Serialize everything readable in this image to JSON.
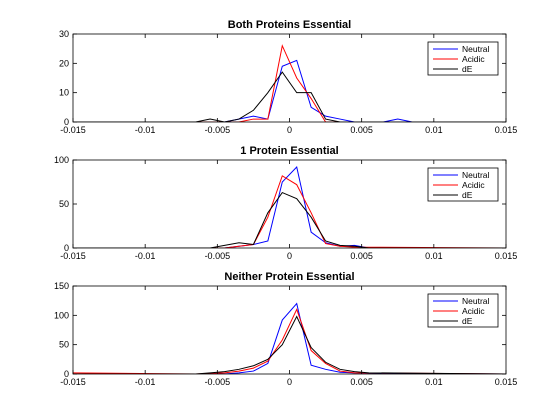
{
  "chart_data": [
    {
      "type": "line",
      "title": "Both Proteins Essential",
      "xlim": [
        -0.015,
        0.015
      ],
      "ylim": [
        0,
        30
      ],
      "xticks": [
        -0.015,
        -0.01,
        -0.005,
        0,
        0.005,
        0.01,
        0.015
      ],
      "xtick_labels": [
        "-0.015",
        "-0.01",
        "-0.005",
        "0",
        "0.005",
        "0.01",
        "0.015"
      ],
      "yticks": [
        0,
        10,
        20,
        30
      ],
      "ytick_labels": [
        "0",
        "10",
        "20",
        "30"
      ],
      "legend_position": "top-right",
      "grid": false,
      "series": [
        {
          "name": "Neutral",
          "color": "#0000ff",
          "x": [
            -0.015,
            -0.0045,
            -0.0025,
            -0.0015,
            -0.0005,
            0.0005,
            0.0015,
            0.0025,
            0.0035,
            0.0045,
            0.0065,
            0.0075,
            0.0085,
            0.0095,
            0.015
          ],
          "y": [
            0,
            0,
            2,
            1,
            19,
            21,
            5,
            2,
            1,
            0,
            0,
            1,
            0,
            0,
            0
          ]
        },
        {
          "name": "Acidic",
          "color": "#ff0000",
          "x": [
            -0.015,
            -0.0035,
            -0.0025,
            -0.0015,
            -0.0005,
            0.0005,
            0.0015,
            0.0025,
            0.0035,
            0.015
          ],
          "y": [
            0,
            0,
            1,
            1,
            26,
            15,
            8,
            0,
            0,
            0
          ]
        },
        {
          "name": "dE",
          "color": "#000000",
          "x": [
            -0.015,
            -0.0065,
            -0.0055,
            -0.0045,
            -0.0035,
            -0.0025,
            -0.0015,
            -0.0005,
            0.0005,
            0.0015,
            0.0025,
            0.0035,
            0.0045,
            0.015
          ],
          "y": [
            0,
            0,
            1,
            0,
            1,
            4,
            10,
            17,
            10,
            10,
            1,
            0,
            0,
            0
          ]
        }
      ]
    },
    {
      "type": "line",
      "title": "1 Protein Essential",
      "xlim": [
        -0.015,
        0.015
      ],
      "ylim": [
        0,
        100
      ],
      "xticks": [
        -0.015,
        -0.01,
        -0.005,
        0,
        0.005,
        0.01,
        0.015
      ],
      "xtick_labels": [
        "-0.015",
        "-0.01",
        "-0.005",
        "0",
        "0.005",
        "0.01",
        "0.015"
      ],
      "yticks": [
        0,
        50,
        100
      ],
      "ytick_labels": [
        "0",
        "50",
        "100"
      ],
      "legend_position": "top-right",
      "grid": false,
      "series": [
        {
          "name": "Neutral",
          "color": "#0000ff",
          "x": [
            -0.015,
            -0.0045,
            -0.0035,
            -0.0025,
            -0.0015,
            -0.0005,
            0.0005,
            0.0015,
            0.0025,
            0.0035,
            0.0045,
            0.0055,
            0.015
          ],
          "y": [
            0,
            0,
            2,
            4,
            8,
            75,
            92,
            18,
            6,
            2,
            3,
            0,
            0
          ]
        },
        {
          "name": "Acidic",
          "color": "#ff0000",
          "x": [
            -0.015,
            -0.0045,
            -0.0035,
            -0.0025,
            -0.0015,
            -0.0005,
            0.0005,
            0.0015,
            0.0025,
            0.0035,
            0.0045,
            0.015
          ],
          "y": [
            0,
            0,
            2,
            4,
            35,
            82,
            72,
            40,
            5,
            2,
            1,
            0
          ]
        },
        {
          "name": "dE",
          "color": "#000000",
          "x": [
            -0.015,
            -0.0055,
            -0.0045,
            -0.0035,
            -0.0025,
            -0.0015,
            -0.0005,
            0.0005,
            0.0015,
            0.0025,
            0.0035,
            0.0045,
            0.0055,
            0.015
          ],
          "y": [
            0,
            0,
            3,
            6,
            4,
            40,
            63,
            56,
            35,
            8,
            3,
            2,
            0,
            0
          ]
        }
      ]
    },
    {
      "type": "line",
      "title": "Neither Protein Essential",
      "xlim": [
        -0.015,
        0.015
      ],
      "ylim": [
        0,
        150
      ],
      "xticks": [
        -0.015,
        -0.01,
        -0.005,
        0,
        0.005,
        0.01,
        0.015
      ],
      "xtick_labels": [
        "-0.015",
        "-0.01",
        "-0.005",
        "0",
        "0.005",
        "0.01",
        "0.015"
      ],
      "yticks": [
        0,
        50,
        100,
        150
      ],
      "ytick_labels": [
        "0",
        "50",
        "100",
        "150"
      ],
      "legend_position": "top-right",
      "grid": false,
      "series": [
        {
          "name": "Neutral",
          "color": "#0000ff",
          "x": [
            -0.015,
            -0.0045,
            -0.0035,
            -0.0025,
            -0.0015,
            -0.0005,
            0.0005,
            0.0015,
            0.0025,
            0.0035,
            0.0045,
            0.0055,
            0.015
          ],
          "y": [
            0,
            0,
            2,
            5,
            18,
            92,
            120,
            15,
            8,
            3,
            2,
            1,
            0
          ]
        },
        {
          "name": "Acidic",
          "color": "#ff0000",
          "x": [
            -0.015,
            -0.0065,
            -0.0045,
            -0.0035,
            -0.0025,
            -0.0015,
            -0.0005,
            0.0005,
            0.0015,
            0.0025,
            0.0035,
            0.0045,
            0.015
          ],
          "y": [
            2,
            0,
            2,
            5,
            10,
            22,
            58,
            110,
            40,
            18,
            5,
            2,
            0
          ]
        },
        {
          "name": "dE",
          "color": "#000000",
          "x": [
            -0.015,
            -0.0065,
            -0.0055,
            -0.0045,
            -0.0035,
            -0.0025,
            -0.0015,
            -0.0005,
            0.0005,
            0.0015,
            0.0025,
            0.0035,
            0.0045,
            0.0055,
            0.015
          ],
          "y": [
            0,
            0,
            2,
            4,
            8,
            14,
            25,
            50,
            98,
            45,
            20,
            8,
            4,
            2,
            0
          ]
        }
      ]
    }
  ]
}
